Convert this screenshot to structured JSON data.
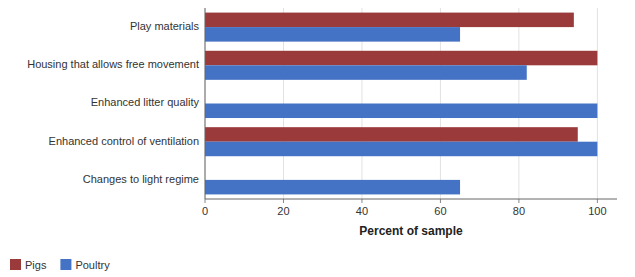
{
  "chart_data": {
    "type": "bar",
    "orientation": "horizontal",
    "categories": [
      "Changes to light regime",
      "Enhanced control of ventilation",
      "Enhanced litter quality",
      "Housing that allows free movement",
      "Play materials"
    ],
    "series": [
      {
        "name": "Pigs",
        "color": "#9B3A3A",
        "values": [
          0,
          95,
          0,
          100,
          94
        ]
      },
      {
        "name": "Poultry",
        "color": "#4472C4",
        "values": [
          65,
          100,
          100,
          82,
          65
        ]
      }
    ],
    "xlabel": "Percent of sample",
    "xlim": [
      0,
      105
    ],
    "xticks": [
      0,
      20,
      40,
      60,
      80,
      100
    ],
    "grid": true,
    "legend": "bottom"
  }
}
